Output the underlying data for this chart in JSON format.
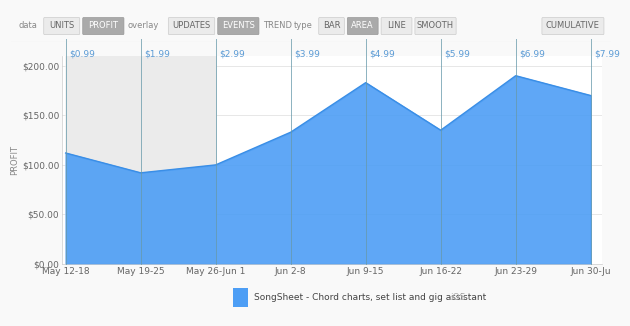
{
  "x_labels": [
    "May 12-18",
    "May 19-25",
    "May 26-Jun 1",
    "Jun 2-8",
    "Jun 9-15",
    "Jun 16-22",
    "Jun 23-29",
    "Jun 30-Ju"
  ],
  "x_positions": [
    0,
    1,
    2,
    3,
    4,
    5,
    6,
    7
  ],
  "y_values": [
    112,
    92,
    100,
    133,
    183,
    135,
    190,
    170
  ],
  "price_labels": [
    "$0.99",
    "$1.99",
    "$2.99",
    "$3.99",
    "$4.99",
    "$5.99",
    "$6.99",
    "$7.99"
  ],
  "vline_x": [
    0,
    1,
    2,
    3,
    4,
    5,
    6,
    7
  ],
  "area_color": "#4d9ef5",
  "line_color": "#3a8ee6",
  "vline_color": "#6699aa",
  "vline_alpha": 0.75,
  "grid_color": "#dddddd",
  "plot_bg": "#ffffff",
  "fig_bg": "#f9f9f9",
  "ylabel": "PROFIT",
  "ylim": [
    0,
    210
  ],
  "yticks": [
    0,
    50,
    100,
    150,
    200
  ],
  "ytick_labels": [
    "$0.00",
    "$50.00",
    "$100.00",
    "$150.00",
    "$200.00"
  ],
  "legend_label": "SongSheet - Chord charts, set list and gig assistant",
  "legend_label2": "iOS",
  "legend_color": "#4d9ef5",
  "price_label_color": "#5b9bd5",
  "price_label_fontsize": 6.5,
  "tick_label_fontsize": 6.5,
  "ylabel_fontsize": 6,
  "gray_fill_color": "#ebebeb",
  "toolbar_bg": "#f2f2f2",
  "toolbar_border": "#dddddd"
}
